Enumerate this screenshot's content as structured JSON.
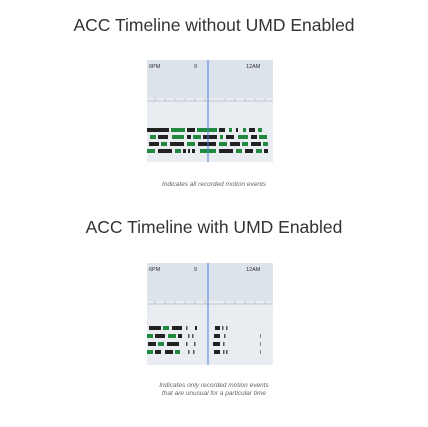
{
  "diagram_1": {
    "title": "ACC Timeline without UMD Enabled",
    "time_labels": [
      "6PM",
      "9",
      "12AM"
    ],
    "caption": "Indicates all recorded motion events"
  },
  "diagram_2": {
    "title": "ACC Timeline with UMD Enabled",
    "time_labels": [
      "6PM",
      "9",
      "12AM"
    ],
    "caption_line_1": "Indicates only recorded motion events",
    "caption_line_2": "that are unusual for a particular time"
  },
  "colors": {
    "timeline_bg": "#e0e5ec",
    "event_dark": "#222222",
    "event_green": "#1f8a3e",
    "event_green_light": "#7ec97b",
    "cursor_blue": "#4a7fd4"
  }
}
